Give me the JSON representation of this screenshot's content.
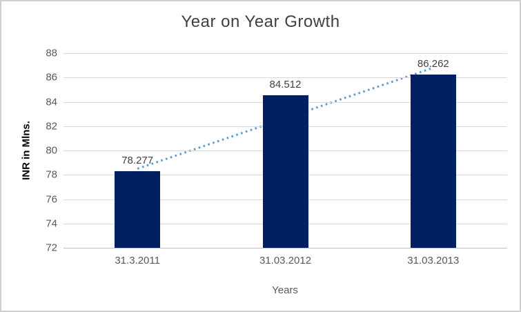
{
  "chart_data": {
    "type": "bar",
    "title": "Year on Year Growth",
    "xlabel": "Years",
    "ylabel": "INR in Mlns.",
    "categories": [
      "31.3.2011",
      "31.03.2012",
      "31.03.2013"
    ],
    "values": [
      78.277,
      84.512,
      86.262
    ],
    "data_labels": [
      "78.277",
      "84.512",
      "86.262"
    ],
    "ylim": [
      72,
      88
    ],
    "yticks": [
      88,
      86,
      84,
      82,
      80,
      78,
      76,
      74,
      72
    ],
    "grid": "horizontal-gridlines-on",
    "legend": "none",
    "series_name": "INR in Mlns.",
    "bar_color": "#002060",
    "trendline": {
      "style": "dotted",
      "color": "#5b9bd5",
      "start_value": 78.5,
      "end_value": 86.8
    },
    "colors": {
      "gridline": "#d9d9d9",
      "axis_line": "#bfbfbf",
      "title_text": "#404040",
      "tick_text": "#595959",
      "data_label_text": "#404040",
      "border": "#d0cece"
    }
  }
}
